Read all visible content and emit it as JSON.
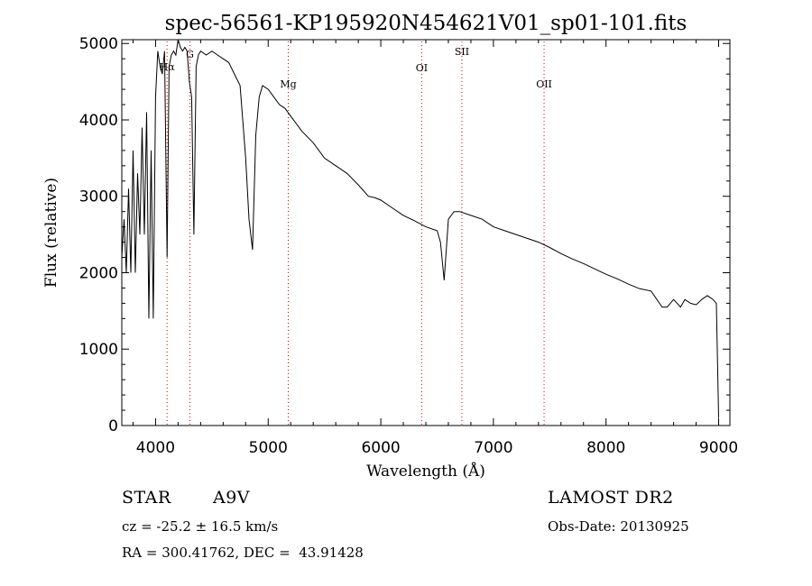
{
  "chart_data": {
    "type": "line",
    "title": "spec-56561-KP195920N454621V01_sp01-101.fits",
    "xlabel": "Wavelength (Å)",
    "ylabel": "Flux (relative)",
    "xlim": [
      3700,
      9100
    ],
    "ylim": [
      0,
      5050
    ],
    "x_ticks": [
      "4000",
      "5000",
      "6000",
      "7000",
      "8000",
      "9000"
    ],
    "y_ticks": [
      "0",
      "1000",
      "2000",
      "3000",
      "4000",
      "5000"
    ],
    "grid": false,
    "series": [
      {
        "x": [
          3700,
          3720,
          3740,
          3760,
          3780,
          3800,
          3820,
          3840,
          3860,
          3880,
          3900,
          3920,
          3940,
          3960,
          3980,
          4000,
          4020,
          4040,
          4060,
          4080,
          4102,
          4120,
          4140,
          4160,
          4180,
          4200,
          4220,
          4240,
          4260,
          4280,
          4300,
          4320,
          4340,
          4360,
          4380,
          4400,
          4450,
          4500,
          4550,
          4600,
          4650,
          4700,
          4750,
          4800,
          4830,
          4861,
          4890,
          4920,
          4950,
          5000,
          5050,
          5100,
          5150,
          5200,
          5300,
          5400,
          5500,
          5600,
          5700,
          5800,
          5890,
          5950,
          6000,
          6100,
          6200,
          6300,
          6400,
          6500,
          6530,
          6563,
          6600,
          6650,
          6700,
          6800,
          6900,
          7000,
          7100,
          7200,
          7300,
          7400,
          7500,
          7600,
          7700,
          7800,
          7900,
          8000,
          8100,
          8200,
          8300,
          8400,
          8498,
          8542,
          8600,
          8662,
          8700,
          8750,
          8800,
          8850,
          8900,
          8950,
          8980,
          9000
        ],
        "y": [
          2200,
          2700,
          2000,
          3100,
          2000,
          3600,
          2000,
          3300,
          2500,
          3900,
          2500,
          4100,
          1400,
          3600,
          1400,
          4300,
          4900,
          4700,
          4600,
          4900,
          2200,
          4700,
          4850,
          4900,
          4850,
          5050,
          4950,
          4900,
          4950,
          4900,
          4500,
          4300,
          2500,
          4700,
          4850,
          4900,
          4850,
          4900,
          4850,
          4800,
          4750,
          4600,
          4450,
          3500,
          2700,
          2300,
          3800,
          4300,
          4450,
          4400,
          4300,
          4200,
          4150,
          4050,
          3850,
          3700,
          3500,
          3400,
          3300,
          3150,
          3000,
          2980,
          2950,
          2850,
          2750,
          2680,
          2600,
          2550,
          2400,
          1900,
          2700,
          2800,
          2800,
          2750,
          2700,
          2600,
          2550,
          2500,
          2450,
          2400,
          2330,
          2250,
          2180,
          2120,
          2050,
          1980,
          1920,
          1850,
          1790,
          1760,
          1550,
          1550,
          1650,
          1550,
          1650,
          1600,
          1580,
          1650,
          1700,
          1650,
          1600,
          100
        ]
      }
    ],
    "line_marks": [
      {
        "label": "Hα",
        "x": 4102
      },
      {
        "label": "G",
        "x": 4305
      },
      {
        "label": "Mg",
        "x": 5178
      },
      {
        "label": "OI",
        "x": 6363
      },
      {
        "label": "SII",
        "x": 6720
      },
      {
        "label": "OII",
        "x": 7450
      }
    ],
    "line_color": "#000000",
    "mark_color": "#cc0000"
  },
  "info": {
    "object_class": "STAR",
    "subclass": "A9V",
    "cz": "cz = -25.2 ± 16.5 km/s",
    "radec": "RA = 300.41762, DEC =  43.91428",
    "survey": "LAMOST DR2",
    "obs_date": "Obs-Date: 20130925"
  }
}
